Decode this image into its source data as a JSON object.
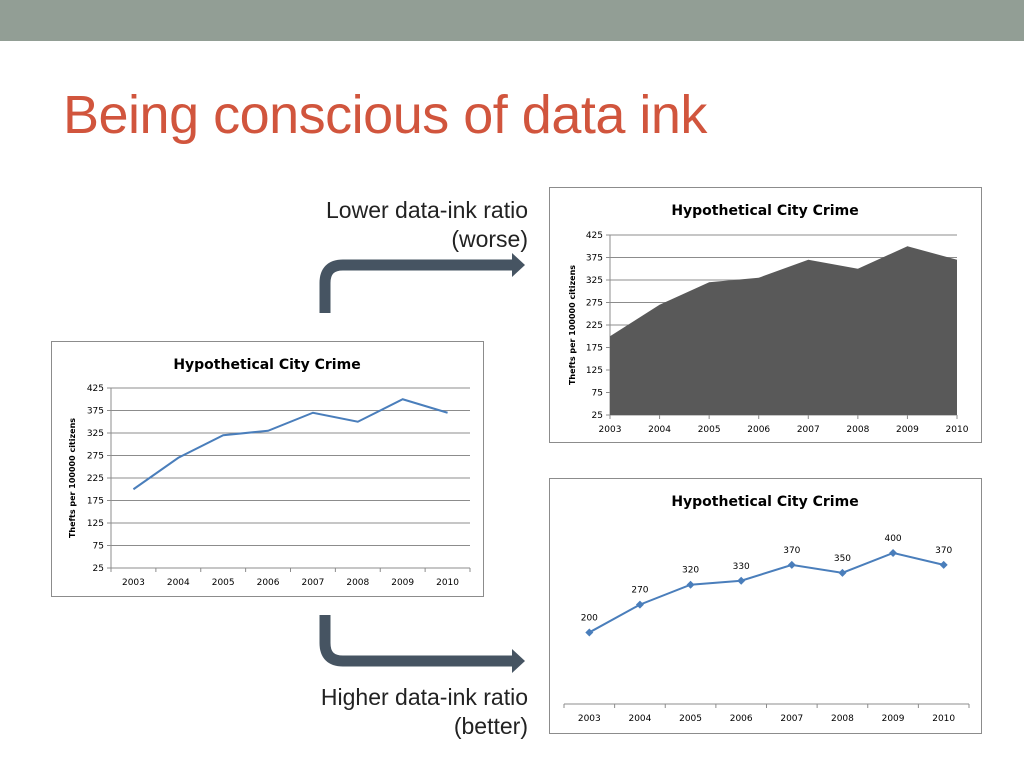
{
  "slide": {
    "title": "Being conscious of data ink",
    "caption_lower": [
      "Lower data-ink ratio",
      "(worse)"
    ],
    "caption_higher": [
      "Higher data-ink ratio",
      "(better)"
    ]
  },
  "colors": {
    "topbar": "#929e95",
    "title": "#d1553d",
    "line": "#4a7ebb",
    "area": "#595959",
    "arrow": "#465462"
  },
  "chart_data": [
    {
      "type": "line",
      "title": "Hypothetical City Crime",
      "ylabel": "Thefts per 100000 citizens",
      "x": [
        "2003",
        "2004",
        "2005",
        "2006",
        "2007",
        "2008",
        "2009",
        "2010"
      ],
      "values": [
        200,
        270,
        320,
        330,
        370,
        350,
        400,
        370
      ],
      "yticks": [
        25,
        75,
        125,
        175,
        225,
        275,
        325,
        375,
        425
      ],
      "ylim": [
        25,
        425
      ],
      "grid": true
    },
    {
      "type": "area",
      "title": "Hypothetical City Crime",
      "ylabel": "Thefts per 100000 citizens",
      "x": [
        "2003",
        "2004",
        "2005",
        "2006",
        "2007",
        "2008",
        "2009",
        "2010"
      ],
      "values": [
        200,
        270,
        320,
        330,
        370,
        350,
        400,
        370
      ],
      "yticks": [
        25,
        75,
        125,
        175,
        225,
        275,
        325,
        375,
        425
      ],
      "ylim": [
        25,
        425
      ],
      "grid": true
    },
    {
      "type": "line",
      "title": "Hypothetical City Crime",
      "x": [
        "2003",
        "2004",
        "2005",
        "2006",
        "2007",
        "2008",
        "2009",
        "2010"
      ],
      "values": [
        200,
        270,
        320,
        330,
        370,
        350,
        400,
        370
      ],
      "data_labels": [
        "200",
        "270",
        "320",
        "330",
        "370",
        "350",
        "400",
        "370"
      ],
      "markers": "diamond",
      "ylim": [
        25,
        425
      ],
      "grid": false
    }
  ]
}
